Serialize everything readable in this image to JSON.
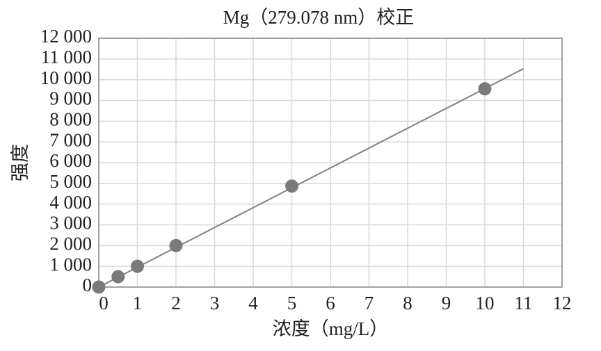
{
  "chart_data": {
    "type": "scatter",
    "title": "Mg（279.078 nm）校正",
    "x_label": "浓度（mg/L）",
    "y_label": "强度",
    "x": [
      0,
      0.5,
      1,
      2,
      5,
      10
    ],
    "values": [
      0,
      500,
      1000,
      2000,
      4870,
      9560
    ],
    "color": "#7a7a7a",
    "fit_line": {
      "x": [
        0,
        11
      ],
      "values": [
        0,
        10530
      ],
      "color": "#808080"
    },
    "xlim": [
      0,
      12
    ],
    "xticks": [
      0,
      1,
      2,
      3,
      4,
      5,
      6,
      7,
      8,
      9,
      10,
      11,
      12
    ],
    "ylim": [
      0,
      12000
    ],
    "yticks": [
      0,
      {
        "value": 1000,
        "label": "1 000"
      },
      {
        "value": 2000,
        "label": "2 000"
      },
      {
        "value": 3000,
        "label": "3 000"
      },
      {
        "value": 4000,
        "label": "4 000"
      },
      {
        "value": 5000,
        "label": "5 000"
      },
      {
        "value": 6000,
        "label": "6 000"
      },
      {
        "value": 7000,
        "label": "7 000"
      },
      {
        "value": 8000,
        "label": "8 000"
      },
      {
        "value": 9000,
        "label": "9 000"
      },
      {
        "value": 10000,
        "label": "10 000"
      },
      {
        "value": 11000,
        "label": "11 000"
      },
      {
        "value": 12000,
        "label": "12 000"
      }
    ],
    "grid": true
  }
}
